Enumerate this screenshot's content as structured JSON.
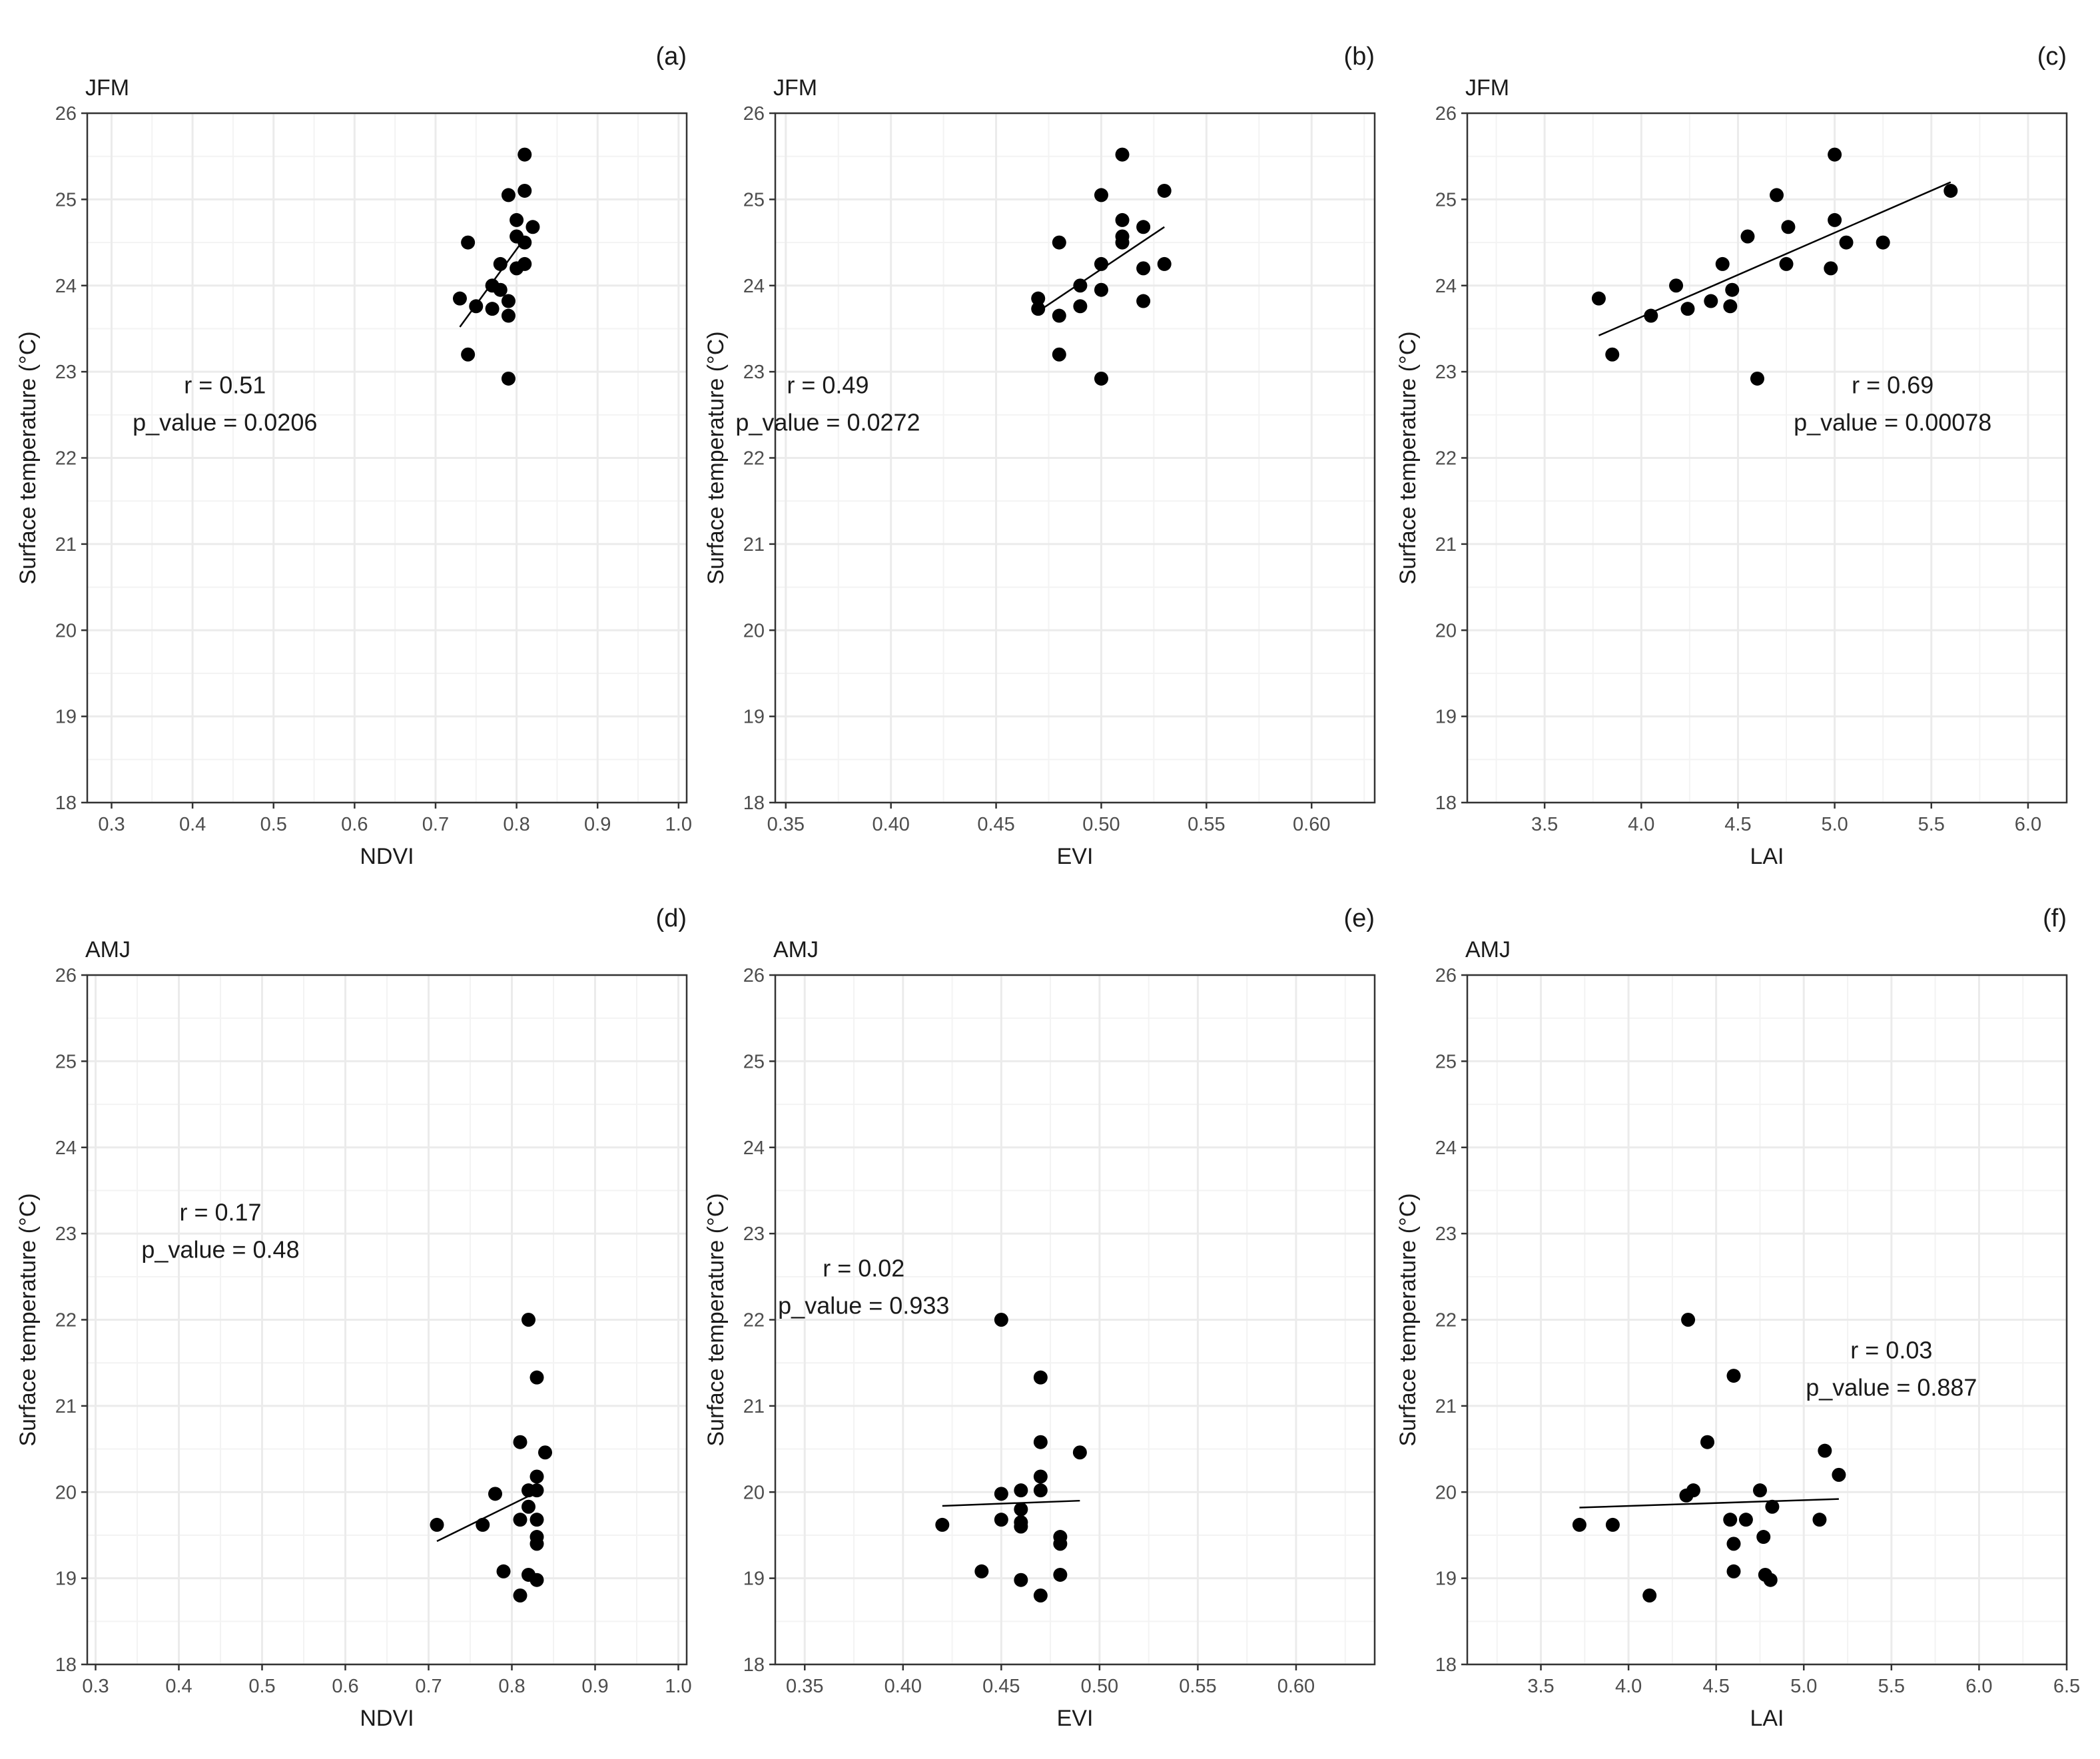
{
  "colors": {
    "point": "#000000",
    "grid": "#ebebeb",
    "border": "#333333"
  },
  "chart_data": [
    {
      "type": "scatter",
      "panel": "(a)",
      "season": "JFM",
      "xlabel": "NDVI",
      "ylabel": "Surface temperature (°C)",
      "xlim": [
        0.27,
        1.01
      ],
      "ylim": [
        18,
        26
      ],
      "xticks": [
        0.3,
        0.4,
        0.5,
        0.6,
        0.7,
        0.8,
        0.9,
        1.0
      ],
      "xtick_labels": [
        "0.3",
        "0.4",
        "0.5",
        "0.6",
        "0.7",
        "0.8",
        "0.9",
        "1.0"
      ],
      "yticks": [
        18,
        19,
        20,
        21,
        22,
        23,
        24,
        25,
        26
      ],
      "points": [
        [
          0.81,
          25.52
        ],
        [
          0.79,
          25.05
        ],
        [
          0.81,
          25.1
        ],
        [
          0.8,
          24.76
        ],
        [
          0.82,
          24.68
        ],
        [
          0.8,
          24.57
        ],
        [
          0.81,
          24.5
        ],
        [
          0.74,
          24.5
        ],
        [
          0.81,
          24.25
        ],
        [
          0.78,
          24.25
        ],
        [
          0.8,
          24.2
        ],
        [
          0.77,
          24.0
        ],
        [
          0.78,
          23.95
        ],
        [
          0.73,
          23.85
        ],
        [
          0.79,
          23.82
        ],
        [
          0.75,
          23.76
        ],
        [
          0.77,
          23.73
        ],
        [
          0.79,
          23.65
        ],
        [
          0.74,
          23.2
        ],
        [
          0.79,
          22.92
        ]
      ],
      "fit": [
        [
          0.73,
          23.52
        ],
        [
          0.81,
          24.55
        ]
      ],
      "stat_r": "r = 0.51",
      "stat_p": "p_value = 0.0206",
      "stat_pos": [
        0.44,
        22.55
      ]
    },
    {
      "type": "scatter",
      "panel": "(b)",
      "season": "JFM",
      "xlabel": "EVI",
      "ylabel": "Surface temperature (°C)",
      "xlim": [
        0.345,
        0.63
      ],
      "ylim": [
        18,
        26
      ],
      "xticks": [
        0.35,
        0.4,
        0.45,
        0.5,
        0.55,
        0.6
      ],
      "xtick_labels": [
        "0.35",
        "0.40",
        "0.45",
        "0.50",
        "0.55",
        "0.60"
      ],
      "yticks": [
        18,
        19,
        20,
        21,
        22,
        23,
        24,
        25,
        26
      ],
      "points": [
        [
          0.51,
          25.52
        ],
        [
          0.53,
          25.1
        ],
        [
          0.5,
          25.05
        ],
        [
          0.51,
          24.76
        ],
        [
          0.52,
          24.68
        ],
        [
          0.51,
          24.57
        ],
        [
          0.51,
          24.5
        ],
        [
          0.48,
          24.5
        ],
        [
          0.53,
          24.25
        ],
        [
          0.5,
          24.25
        ],
        [
          0.52,
          24.2
        ],
        [
          0.49,
          24.0
        ],
        [
          0.5,
          23.95
        ],
        [
          0.47,
          23.85
        ],
        [
          0.52,
          23.82
        ],
        [
          0.49,
          23.76
        ],
        [
          0.47,
          23.73
        ],
        [
          0.48,
          23.65
        ],
        [
          0.48,
          23.2
        ],
        [
          0.5,
          22.92
        ]
      ],
      "fit": [
        [
          0.47,
          23.7
        ],
        [
          0.53,
          24.68
        ]
      ],
      "stat_r": "r = 0.49",
      "stat_p": "p_value = 0.0272",
      "stat_pos": [
        0.37,
        22.55
      ]
    },
    {
      "type": "scatter",
      "panel": "(c)",
      "season": "JFM",
      "xlabel": "LAI",
      "ylabel": "Surface temperature (°C)",
      "xlim": [
        3.1,
        6.2
      ],
      "ylim": [
        18,
        26
      ],
      "xticks": [
        3.5,
        4.0,
        4.5,
        5.0,
        5.5,
        6.0
      ],
      "xtick_labels": [
        "3.5",
        "4.0",
        "4.5",
        "5.0",
        "5.5",
        "6.0"
      ],
      "yticks": [
        18,
        19,
        20,
        21,
        22,
        23,
        24,
        25,
        26
      ],
      "points": [
        [
          5.0,
          25.52
        ],
        [
          5.6,
          25.1
        ],
        [
          4.7,
          25.05
        ],
        [
          5.0,
          24.76
        ],
        [
          4.76,
          24.68
        ],
        [
          4.55,
          24.57
        ],
        [
          5.06,
          24.5
        ],
        [
          5.25,
          24.5
        ],
        [
          4.42,
          24.25
        ],
        [
          4.75,
          24.25
        ],
        [
          4.98,
          24.2
        ],
        [
          4.18,
          24.0
        ],
        [
          4.47,
          23.95
        ],
        [
          3.78,
          23.85
        ],
        [
          4.36,
          23.82
        ],
        [
          4.46,
          23.76
        ],
        [
          4.24,
          23.73
        ],
        [
          4.05,
          23.65
        ],
        [
          3.85,
          23.2
        ],
        [
          4.6,
          22.92
        ]
      ],
      "fit": [
        [
          3.78,
          23.42
        ],
        [
          5.6,
          25.2
        ]
      ],
      "stat_r": "r = 0.69",
      "stat_p": "p_value = 0.00078",
      "stat_pos": [
        5.3,
        22.55
      ]
    },
    {
      "type": "scatter",
      "panel": "(d)",
      "season": "AMJ",
      "xlabel": "NDVI",
      "ylabel": "Surface temperature (°C)",
      "xlim": [
        0.29,
        1.01
      ],
      "ylim": [
        18,
        26
      ],
      "xticks": [
        0.3,
        0.4,
        0.5,
        0.6,
        0.7,
        0.8,
        0.9,
        1.0
      ],
      "xtick_labels": [
        "0.3",
        "0.4",
        "0.5",
        "0.6",
        "0.7",
        "0.8",
        "0.9",
        "1.0"
      ],
      "yticks": [
        18,
        19,
        20,
        21,
        22,
        23,
        24,
        25,
        26
      ],
      "points": [
        [
          0.82,
          22.0
        ],
        [
          0.83,
          21.33
        ],
        [
          0.81,
          20.58
        ],
        [
          0.84,
          20.46
        ],
        [
          0.83,
          20.18
        ],
        [
          0.78,
          19.98
        ],
        [
          0.82,
          20.02
        ],
        [
          0.83,
          20.02
        ],
        [
          0.82,
          19.83
        ],
        [
          0.81,
          19.68
        ],
        [
          0.83,
          19.68
        ],
        [
          0.71,
          19.62
        ],
        [
          0.765,
          19.62
        ],
        [
          0.83,
          19.48
        ],
        [
          0.83,
          19.4
        ],
        [
          0.79,
          19.08
        ],
        [
          0.82,
          19.04
        ],
        [
          0.83,
          18.98
        ],
        [
          0.81,
          18.8
        ]
      ],
      "fit": [
        [
          0.71,
          19.43
        ],
        [
          0.83,
          20.0
        ]
      ],
      "stat_r": "r = 0.17",
      "stat_p": "p_value = 0.48",
      "stat_pos": [
        0.45,
        22.95
      ]
    },
    {
      "type": "scatter",
      "panel": "(e)",
      "season": "AMJ",
      "xlabel": "EVI",
      "ylabel": "Surface temperature (°C)",
      "xlim": [
        0.335,
        0.64
      ],
      "ylim": [
        18,
        26
      ],
      "xticks": [
        0.35,
        0.4,
        0.45,
        0.5,
        0.55,
        0.6
      ],
      "xtick_labels": [
        "0.35",
        "0.40",
        "0.45",
        "0.50",
        "0.55",
        "0.60"
      ],
      "yticks": [
        18,
        19,
        20,
        21,
        22,
        23,
        24,
        25,
        26
      ],
      "points": [
        [
          0.45,
          22.0
        ],
        [
          0.47,
          21.33
        ],
        [
          0.47,
          20.58
        ],
        [
          0.49,
          20.46
        ],
        [
          0.47,
          20.18
        ],
        [
          0.45,
          19.98
        ],
        [
          0.46,
          20.02
        ],
        [
          0.47,
          20.02
        ],
        [
          0.46,
          19.8
        ],
        [
          0.45,
          19.68
        ],
        [
          0.46,
          19.65
        ],
        [
          0.42,
          19.62
        ],
        [
          0.46,
          19.6
        ],
        [
          0.48,
          19.48
        ],
        [
          0.48,
          19.4
        ],
        [
          0.44,
          19.08
        ],
        [
          0.48,
          19.04
        ],
        [
          0.46,
          18.98
        ],
        [
          0.47,
          18.8
        ]
      ],
      "fit": [
        [
          0.42,
          19.84
        ],
        [
          0.49,
          19.9
        ]
      ],
      "stat_r": "r = 0.02",
      "stat_p": "p_value = 0.933",
      "stat_pos": [
        0.38,
        22.3
      ]
    },
    {
      "type": "scatter",
      "panel": "(f)",
      "season": "AMJ",
      "xlabel": "LAI",
      "ylabel": "Surface temperature (°C)",
      "xlim": [
        3.08,
        6.5
      ],
      "ylim": [
        18,
        26
      ],
      "xticks": [
        3.5,
        4.0,
        4.5,
        5.0,
        5.5,
        6.0,
        6.5
      ],
      "xtick_labels": [
        "3.5",
        "4.0",
        "4.5",
        "5.0",
        "5.5",
        "6.0",
        "6.5"
      ],
      "yticks": [
        18,
        19,
        20,
        21,
        22,
        23,
        24,
        25,
        26
      ],
      "points": [
        [
          4.34,
          22.0
        ],
        [
          4.6,
          21.35
        ],
        [
          4.45,
          20.58
        ],
        [
          5.12,
          20.48
        ],
        [
          5.2,
          20.2
        ],
        [
          4.37,
          20.02
        ],
        [
          4.33,
          19.96
        ],
        [
          4.75,
          20.02
        ],
        [
          4.82,
          19.83
        ],
        [
          4.58,
          19.68
        ],
        [
          4.67,
          19.68
        ],
        [
          5.09,
          19.68
        ],
        [
          3.72,
          19.62
        ],
        [
          3.91,
          19.62
        ],
        [
          4.77,
          19.48
        ],
        [
          4.6,
          19.4
        ],
        [
          4.6,
          19.08
        ],
        [
          4.78,
          19.04
        ],
        [
          4.81,
          18.98
        ],
        [
          4.12,
          18.8
        ]
      ],
      "fit": [
        [
          3.72,
          19.82
        ],
        [
          5.2,
          19.92
        ]
      ],
      "stat_r": "r = 0.03",
      "stat_p": "p_value = 0.887",
      "stat_pos": [
        5.5,
        21.35
      ]
    }
  ]
}
